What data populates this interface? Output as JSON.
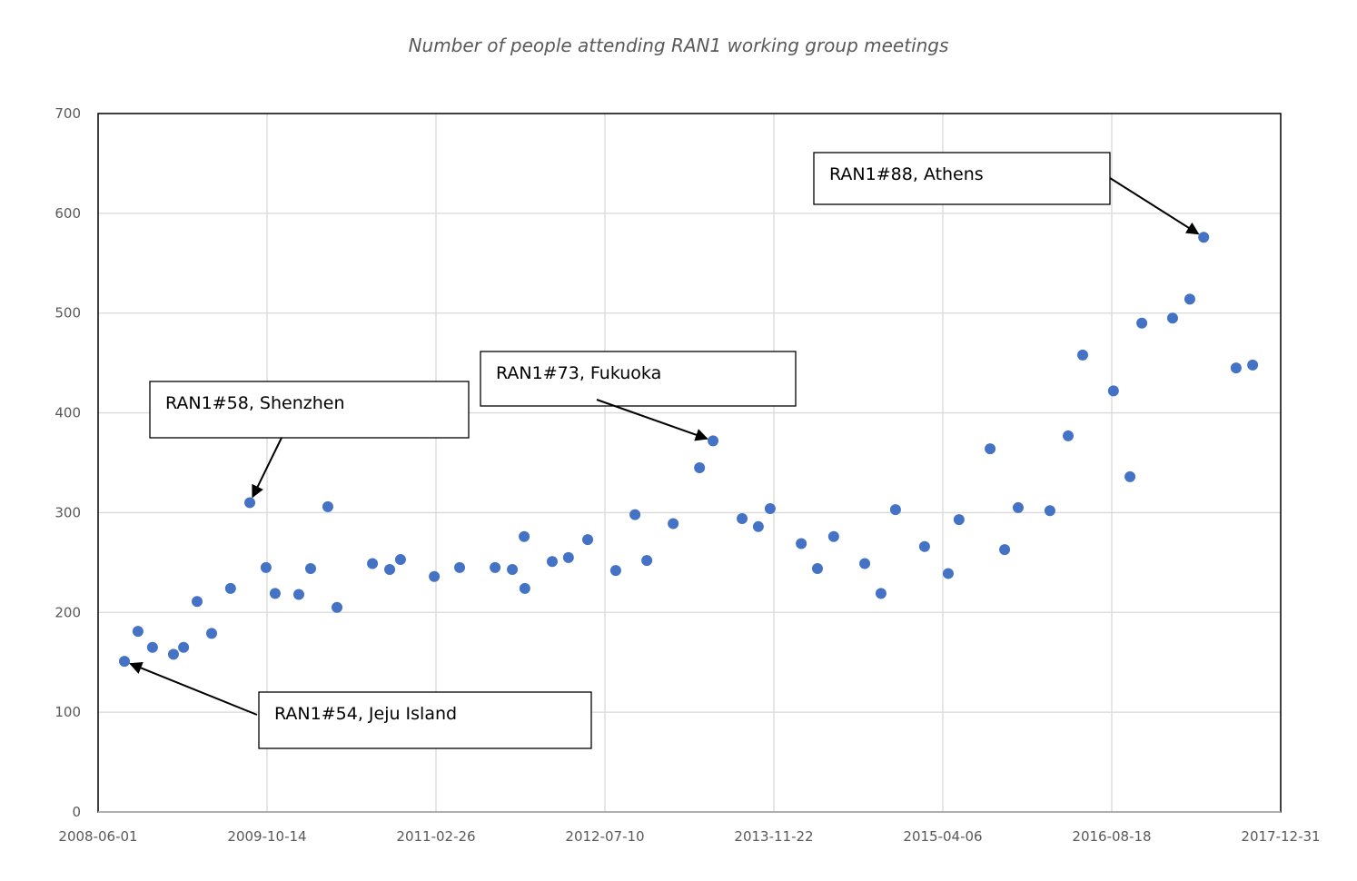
{
  "chart_data": {
    "type": "scatter",
    "title": "Number of people attending RAN1 working group meetings",
    "xlabel": "",
    "ylabel": "",
    "xlim": [
      "2008-06-01",
      "2017-12-31"
    ],
    "ylim": [
      0,
      700
    ],
    "x_ticks": [
      "2008-06-01",
      "2009-10-14",
      "2011-02-26",
      "2012-07-10",
      "2013-11-22",
      "2015-04-06",
      "2016-08-18",
      "2017-12-31"
    ],
    "y_ticks": [
      0,
      100,
      200,
      300,
      400,
      500,
      600,
      700
    ],
    "grid": true,
    "marker_color": "#4472C4",
    "points": [
      [
        "2008-08-18",
        151
      ],
      [
        "2008-09-27",
        181
      ],
      [
        "2008-11-09",
        165
      ],
      [
        "2009-01-10",
        158
      ],
      [
        "2009-02-09",
        165
      ],
      [
        "2009-03-21",
        211
      ],
      [
        "2009-05-03",
        179
      ],
      [
        "2009-06-28",
        224
      ],
      [
        "2009-08-24",
        310
      ],
      [
        "2009-10-11",
        245
      ],
      [
        "2009-11-07",
        219
      ],
      [
        "2010-01-16",
        218
      ],
      [
        "2010-02-20",
        244
      ],
      [
        "2010-04-12",
        306
      ],
      [
        "2010-05-09",
        205
      ],
      [
        "2010-08-22",
        249
      ],
      [
        "2010-10-12",
        243
      ],
      [
        "2010-11-13",
        253
      ],
      [
        "2011-02-21",
        236
      ],
      [
        "2011-05-07",
        245
      ],
      [
        "2011-08-20",
        245
      ],
      [
        "2011-10-10",
        243
      ],
      [
        "2011-11-14",
        276
      ],
      [
        "2011-11-16",
        224
      ],
      [
        "2012-02-05",
        251
      ],
      [
        "2012-03-24",
        255
      ],
      [
        "2012-05-20",
        273
      ],
      [
        "2012-08-11",
        242
      ],
      [
        "2012-10-07",
        298
      ],
      [
        "2012-11-11",
        252
      ],
      [
        "2013-01-28",
        289
      ],
      [
        "2013-04-16",
        345
      ],
      [
        "2013-05-26",
        372
      ],
      [
        "2013-08-20",
        294
      ],
      [
        "2013-10-07",
        286
      ],
      [
        "2013-11-11",
        304
      ],
      [
        "2014-02-11",
        269
      ],
      [
        "2014-03-31",
        244
      ],
      [
        "2014-05-18",
        276
      ],
      [
        "2014-08-18",
        249
      ],
      [
        "2014-10-05",
        219
      ],
      [
        "2014-11-17",
        303
      ],
      [
        "2015-02-11",
        266
      ],
      [
        "2015-04-22",
        239
      ],
      [
        "2015-05-24",
        293
      ],
      [
        "2015-08-24",
        364
      ],
      [
        "2015-10-06",
        263
      ],
      [
        "2015-11-15",
        305
      ],
      [
        "2016-02-17",
        302
      ],
      [
        "2016-04-11",
        377
      ],
      [
        "2016-05-24",
        458
      ],
      [
        "2016-08-23",
        422
      ],
      [
        "2016-10-11",
        336
      ],
      [
        "2016-11-15",
        490
      ],
      [
        "2017-02-14",
        495
      ],
      [
        "2017-04-06",
        514
      ],
      [
        "2017-05-17",
        576
      ],
      [
        "2017-08-21",
        445
      ],
      [
        "2017-10-09",
        448
      ]
    ],
    "annotations": [
      {
        "text": "RAN1#58, Shenzhen",
        "target": [
          "2009-08-24",
          310
        ]
      },
      {
        "text": "RAN1#73, Fukuoka",
        "target": [
          "2013-05-26",
          372
        ]
      },
      {
        "text": "RAN1#88, Athens",
        "target": [
          "2017-05-17",
          576
        ]
      },
      {
        "text": "RAN1#54, Jeju Island",
        "target": [
          "2008-08-18",
          151
        ]
      }
    ]
  }
}
